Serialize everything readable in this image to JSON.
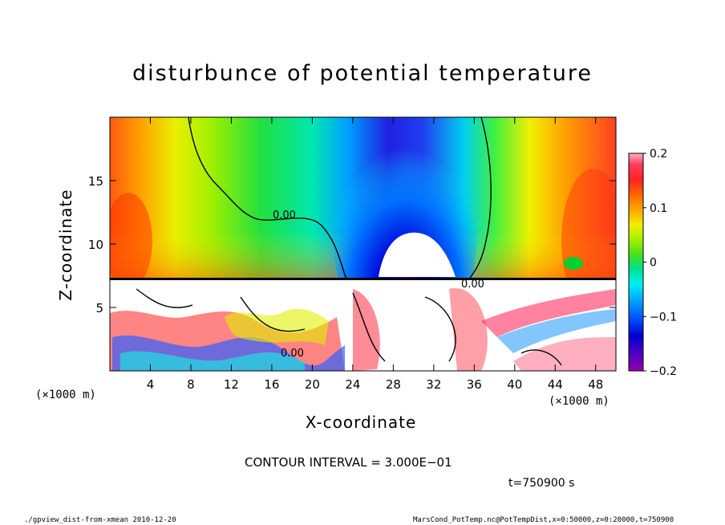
{
  "chart_data": {
    "type": "heatmap",
    "title": "disturbunce of potential temperature",
    "xlabel": "X-coordinate",
    "ylabel": "Z-coordinate",
    "x_unit": "(×1000 m)",
    "x_ticks": [
      4,
      8,
      12,
      16,
      20,
      24,
      28,
      32,
      36,
      40,
      44,
      48
    ],
    "y_ticks": [
      5,
      10,
      15
    ],
    "xlim": [
      0,
      50
    ],
    "ylim": [
      0,
      20
    ],
    "colorbar": {
      "ticks": [
        0.2,
        0.1,
        0,
        -0.1,
        -0.2
      ],
      "tick_labels": [
        "0.2",
        "0.1",
        "0",
        "−0.1",
        "−0.2"
      ],
      "range": [
        -0.2,
        0.2
      ]
    },
    "contour_labels": [
      "0.00",
      "0.00",
      "0.00"
    ],
    "contour_interval": "CONTOUR INTERVAL = 3.000E−01",
    "time": "t=750900 s",
    "grid": false
  },
  "footer": {
    "left": "./gpview_dist-from-xmean  2010-12-20",
    "right": "MarsCond_PotTemp.nc@PotTempDist,x=0:50000,z=0:20000,t=750900"
  }
}
